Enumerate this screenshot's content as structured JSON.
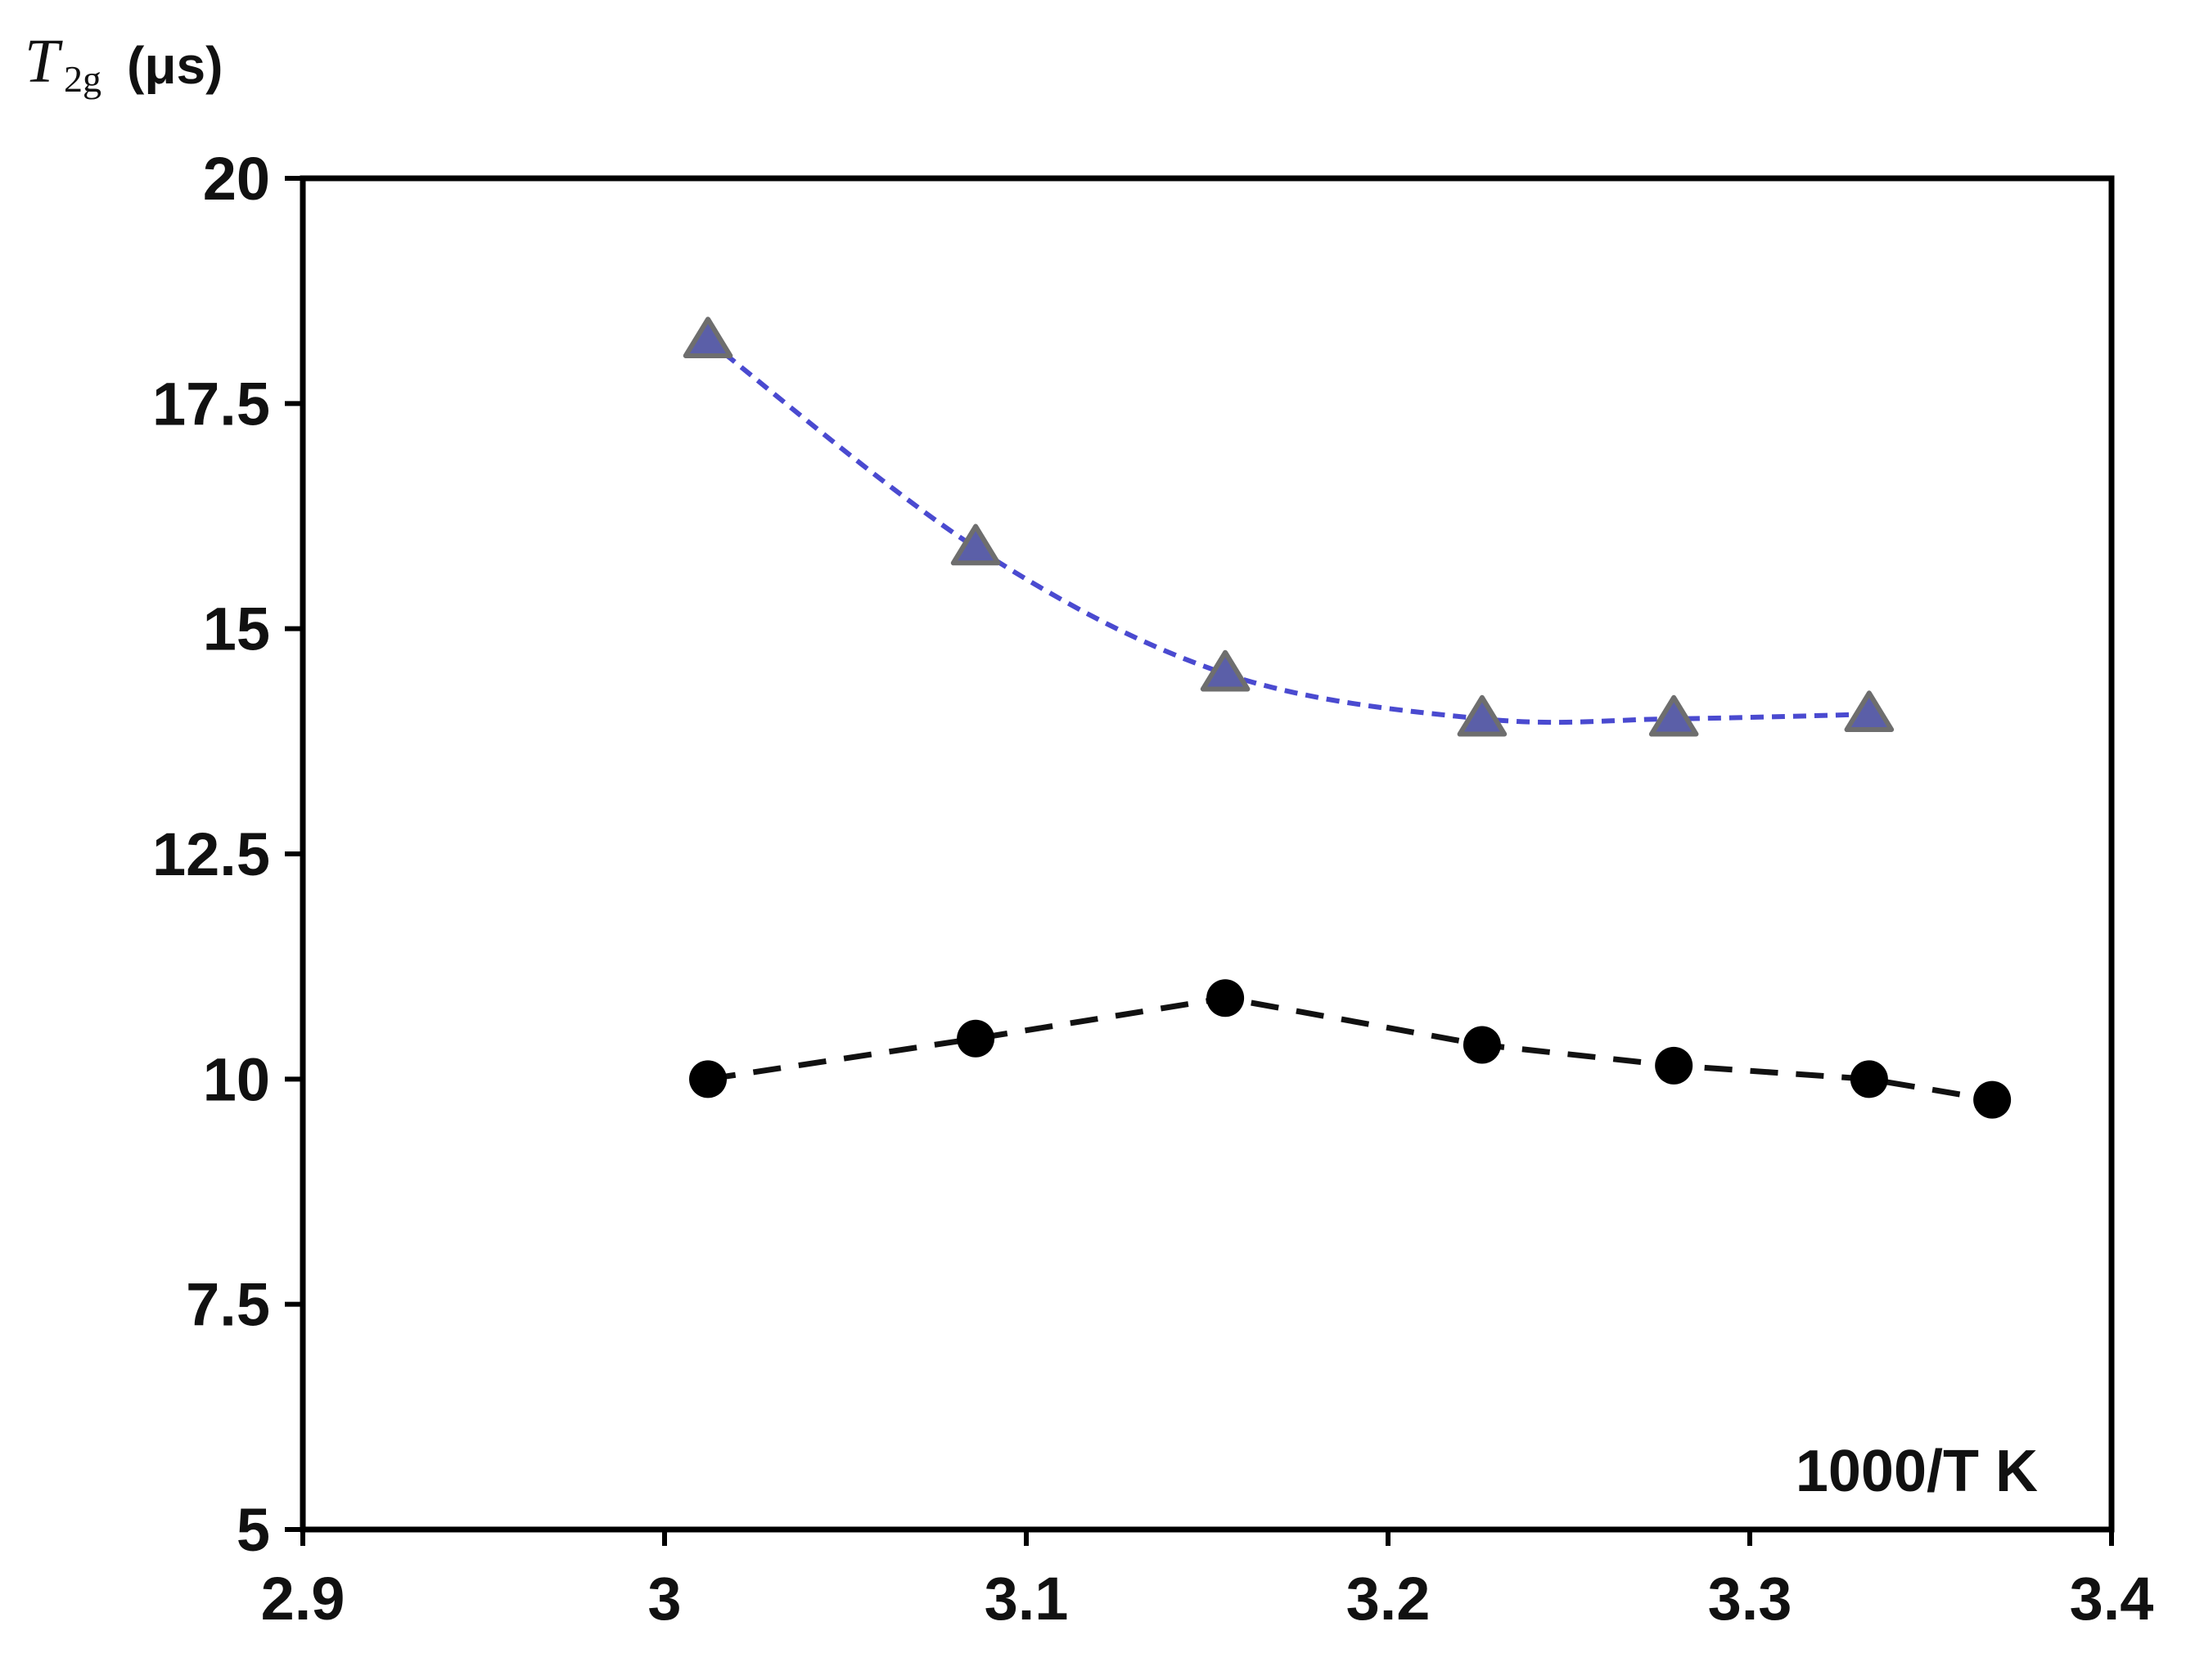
{
  "chart_data": {
    "type": "scatter",
    "title": "",
    "ylabel": {
      "symbol": "T",
      "subscript": "2g",
      "unit": "(μs)"
    },
    "xlabel": "1000/T K",
    "xlim": [
      2.9,
      3.4
    ],
    "ylim": [
      5,
      20
    ],
    "x_ticks": [
      2.9,
      3.0,
      3.1,
      3.2,
      3.3,
      3.4
    ],
    "x_tick_labels": [
      "2.9",
      "3",
      "3.1",
      "3.2",
      "3.3",
      "3.4"
    ],
    "y_ticks": [
      5,
      7.5,
      10,
      12.5,
      15,
      17.5,
      20
    ],
    "y_tick_labels": [
      "5",
      "7.5",
      "10",
      "12.5",
      "15",
      "17.5",
      "20"
    ],
    "grid": false,
    "series": [
      {
        "marker": "triangle",
        "color": "#5b5fa8",
        "line_color": "#4a4ad0",
        "line_style": "dashed-smooth",
        "x": [
          3.012,
          3.086,
          3.155,
          3.226,
          3.279,
          3.333
        ],
        "y": [
          18.2,
          15.9,
          14.5,
          14.0,
          14.0,
          14.05
        ]
      },
      {
        "marker": "circle",
        "color": "#000000",
        "line_color": "#111111",
        "line_style": "dashed",
        "x": [
          3.012,
          3.086,
          3.155,
          3.226,
          3.279,
          3.333,
          3.367
        ],
        "y": [
          10.0,
          10.45,
          10.9,
          10.38,
          10.15,
          10.0,
          9.77
        ]
      }
    ]
  }
}
